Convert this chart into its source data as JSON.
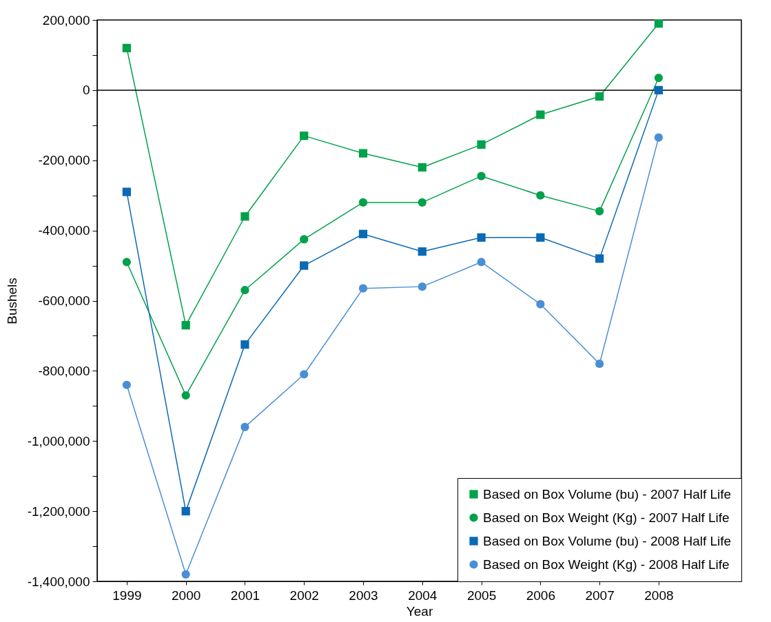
{
  "chart_data": {
    "type": "line",
    "xlabel": "Year",
    "ylabel": "Bushels",
    "x": [
      1999,
      2000,
      2001,
      2002,
      2003,
      2004,
      2005,
      2006,
      2007,
      2008
    ],
    "xlim": [
      1998.5,
      2009.4
    ],
    "xticks": [
      1999,
      2000,
      2001,
      2002,
      2003,
      2004,
      2005,
      2006,
      2007,
      2008
    ],
    "ylim": [
      -1400000,
      200000
    ],
    "yticks": [
      {
        "value": 200000,
        "label": "200,000"
      },
      {
        "value": 100000,
        "label": null
      },
      {
        "value": 0,
        "label": "0"
      },
      {
        "value": -100000,
        "label": null
      },
      {
        "value": -200000,
        "label": "-200,000"
      },
      {
        "value": -300000,
        "label": null
      },
      {
        "value": -400000,
        "label": "-400,000"
      },
      {
        "value": -500000,
        "label": null
      },
      {
        "value": -600000,
        "label": "-600,000"
      },
      {
        "value": -700000,
        "label": null
      },
      {
        "value": -800000,
        "label": "-800,000"
      },
      {
        "value": -900000,
        "label": null
      },
      {
        "value": -1000000,
        "label": "-1,000,000"
      },
      {
        "value": -1100000,
        "label": null
      },
      {
        "value": -1200000,
        "label": "-1,200,000"
      },
      {
        "value": -1300000,
        "label": null
      },
      {
        "value": -1400000,
        "label": "-1,400,000"
      }
    ],
    "grid": false,
    "legend": "bottom right",
    "line_style": "solid",
    "ref_lines": [
      {
        "axis": "y",
        "value": 0,
        "label": null,
        "color": "#000000"
      }
    ],
    "series": [
      {
        "name": "Based on Box Volume (bu) - 2007 Half Life",
        "color": "#00a14b",
        "marker": "square",
        "values": [
          120000,
          -670000,
          -360000,
          -130000,
          -180000,
          -220000,
          -155000,
          -70000,
          -18000,
          190000
        ]
      },
      {
        "name": "Based on Box Weight (Kg) - 2007 Half Life",
        "color": "#00a14b",
        "marker": "circle",
        "values": [
          -490000,
          -870000,
          -570000,
          -425000,
          -320000,
          -320000,
          -245000,
          -300000,
          -345000,
          35000
        ]
      },
      {
        "name": "Based on Box Volume (bu) - 2008 Half Life",
        "color": "#0a6ab5",
        "marker": "square",
        "values": [
          -290000,
          -1200000,
          -725000,
          -500000,
          -410000,
          -460000,
          -420000,
          -420000,
          -480000,
          0
        ]
      },
      {
        "name": "Based on Box Weight (Kg) - 2008 Half Life",
        "color": "#4a8fd6",
        "marker": "circle",
        "values": [
          -840000,
          -1380000,
          -960000,
          -810000,
          -565000,
          -560000,
          -490000,
          -610000,
          -780000,
          -135000
        ]
      }
    ]
  }
}
